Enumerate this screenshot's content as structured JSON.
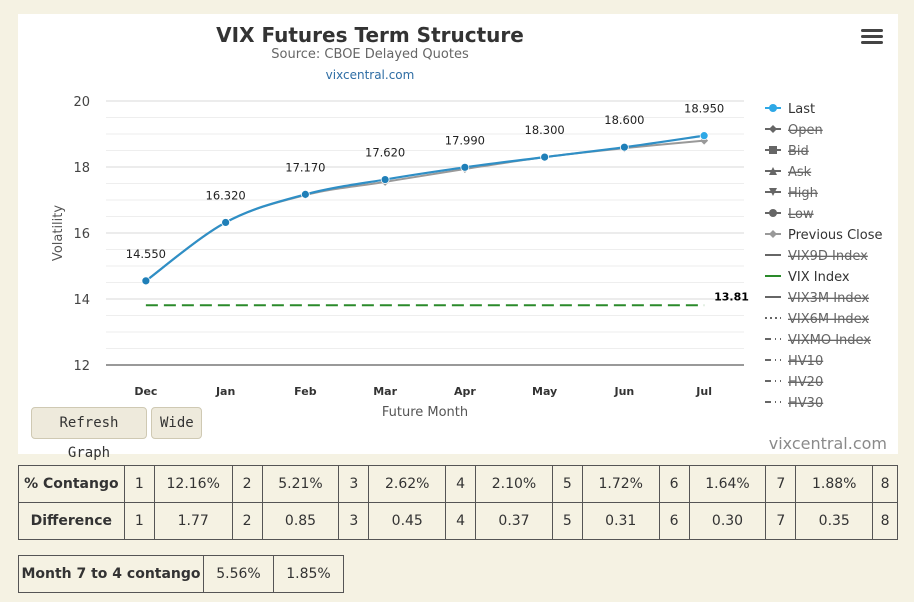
{
  "chart": {
    "title": "VIX Futures Term Structure",
    "subtitle": "Source: CBOE Delayed Quotes",
    "link": "vixcentral.com",
    "watermark": "vixcentral.com",
    "menu_icon": "hamburger-menu-icon",
    "refresh_label": "Refresh Graph",
    "wide_label": "Wide"
  },
  "chart_data": {
    "type": "line",
    "title": "VIX Futures Term Structure",
    "subtitle": "Source: CBOE Delayed Quotes",
    "xlabel": "Future Month",
    "ylabel": "Volatility",
    "categories": [
      "Dec",
      "Jan",
      "Feb",
      "Mar",
      "Apr",
      "May",
      "Jun",
      "Jul"
    ],
    "y_ticks": [
      12,
      14,
      16,
      18,
      20
    ],
    "ylim": [
      12,
      20
    ],
    "grid": true,
    "legend_position": "right",
    "series": [
      {
        "name": "Last",
        "color": "#2ea8e6",
        "labels": [
          "14.550",
          "16.320",
          "17.170",
          "17.620",
          "17.990",
          "18.300",
          "18.600",
          "18.950"
        ],
        "values": [
          14.55,
          16.32,
          17.17,
          17.62,
          17.99,
          18.3,
          18.6,
          18.95
        ]
      },
      {
        "name": "Previous Close",
        "color": "#999999",
        "values": [
          14.55,
          16.32,
          17.15,
          17.55,
          17.94,
          18.3,
          18.57,
          18.8
        ]
      },
      {
        "name": "VIX Index",
        "color": "#2a8a2a",
        "values": [
          13.81,
          13.81,
          13.81,
          13.81,
          13.81,
          13.81,
          13.81,
          13.81
        ],
        "end_label": "13.81"
      }
    ],
    "legend": [
      {
        "name": "Last",
        "active": true,
        "marker": "circle",
        "color": "#2ea8e6",
        "line": "solid"
      },
      {
        "name": "Open",
        "active": false,
        "marker": "diamond",
        "color": "#666666",
        "line": "solid"
      },
      {
        "name": "Bid",
        "active": false,
        "marker": "square",
        "color": "#666666",
        "line": "solid"
      },
      {
        "name": "Ask",
        "active": false,
        "marker": "triangle",
        "color": "#666666",
        "line": "solid"
      },
      {
        "name": "High",
        "active": false,
        "marker": "triangle-down",
        "color": "#666666",
        "line": "solid"
      },
      {
        "name": "Low",
        "active": false,
        "marker": "circle",
        "color": "#666666",
        "line": "solid"
      },
      {
        "name": "Previous Close",
        "active": true,
        "marker": "diamond",
        "color": "#999999",
        "line": "solid"
      },
      {
        "name": "VIX9D Index",
        "active": false,
        "marker": "none",
        "color": "#666666",
        "line": "solid"
      },
      {
        "name": "VIX Index",
        "active": true,
        "marker": "none",
        "color": "#2a8a2a",
        "line": "solid"
      },
      {
        "name": "VIX3M Index",
        "active": false,
        "marker": "none",
        "color": "#666666",
        "line": "solid"
      },
      {
        "name": "VIX6M Index",
        "active": false,
        "marker": "none",
        "color": "#666666",
        "line": "dotted"
      },
      {
        "name": "VIXMO Index",
        "active": false,
        "marker": "none",
        "color": "#666666",
        "line": "dashdot"
      },
      {
        "name": "HV10",
        "active": false,
        "marker": "none",
        "color": "#666666",
        "line": "dashdot"
      },
      {
        "name": "HV20",
        "active": false,
        "marker": "none",
        "color": "#666666",
        "line": "dashdot"
      },
      {
        "name": "HV30",
        "active": false,
        "marker": "none",
        "color": "#666666",
        "line": "dashdot"
      }
    ]
  },
  "contango": {
    "row1_label": "% Contango",
    "row2_label": "Difference",
    "cells": [
      {
        "n": "1",
        "pct": "12.16%",
        "diff": "1.77"
      },
      {
        "n": "2",
        "pct": "5.21%",
        "diff": "0.85"
      },
      {
        "n": "3",
        "pct": "2.62%",
        "diff": "0.45"
      },
      {
        "n": "4",
        "pct": "2.10%",
        "diff": "0.37"
      },
      {
        "n": "5",
        "pct": "1.72%",
        "diff": "0.31"
      },
      {
        "n": "6",
        "pct": "1.64%",
        "diff": "0.30"
      },
      {
        "n": "7",
        "pct": "1.88%",
        "diff": "0.35"
      }
    ],
    "last_n": "8"
  },
  "month_contango": {
    "label": "Month 7 to 4 contango",
    "v1": "5.56%",
    "v2": "1.85%"
  }
}
